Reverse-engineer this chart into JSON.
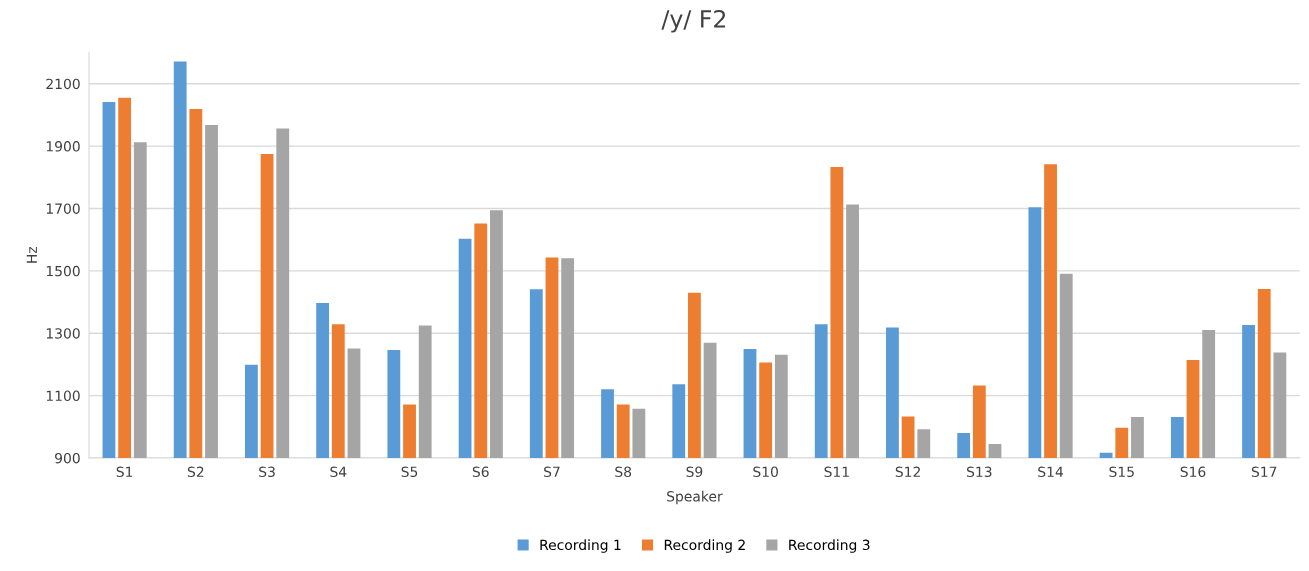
{
  "chart_data": {
    "type": "bar",
    "title": "/y/ F2",
    "xlabel": "Speaker",
    "ylabel": "Hz",
    "categories": [
      "S1",
      "S2",
      "S3",
      "S4",
      "S5",
      "S6",
      "S7",
      "S8",
      "S9",
      "S10",
      "S11",
      "S12",
      "S13",
      "S14",
      "S15",
      "S16",
      "S17"
    ],
    "series": [
      {
        "name": "Recording 1",
        "color": "#5b9bd5",
        "values": [
          2041,
          2171,
          1199,
          1397,
          1246,
          1603,
          1441,
          1120,
          1136,
          1249,
          1329,
          1318,
          980,
          1704,
          917,
          1031,
          1326
        ]
      },
      {
        "name": "Recording 2",
        "color": "#ed7d31",
        "values": [
          2055,
          2019,
          1875,
          1329,
          1071,
          1652,
          1543,
          1071,
          1430,
          1206,
          1833,
          1033,
          1132,
          1842,
          997,
          1214,
          1442
        ]
      },
      {
        "name": "Recording 3",
        "color": "#a5a5a5",
        "values": [
          1912,
          1968,
          1956,
          1251,
          1325,
          1694,
          1540,
          1058,
          1269,
          1231,
          1713,
          992,
          945,
          1491,
          1031,
          1310,
          1238
        ]
      }
    ],
    "ylim": [
      900,
      2200
    ],
    "yticks": [
      900,
      1100,
      1300,
      1500,
      1700,
      1900,
      2100
    ],
    "grid": "y",
    "legend": "bottom"
  }
}
